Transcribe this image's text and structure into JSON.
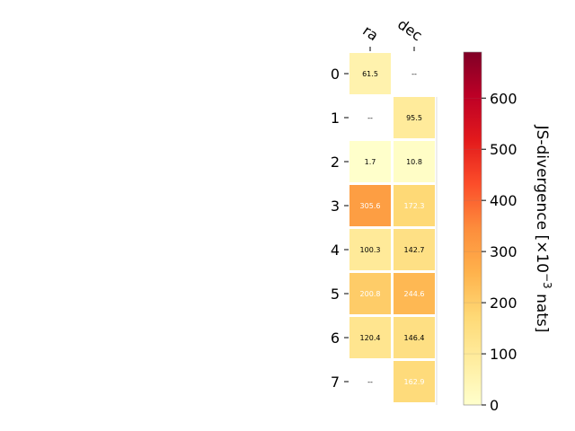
{
  "chart_data": {
    "type": "heatmap",
    "columns": [
      "ra",
      "dec"
    ],
    "rows": [
      "0",
      "1",
      "2",
      "3",
      "4",
      "5",
      "6",
      "7"
    ],
    "values": [
      [
        61.5,
        null
      ],
      [
        null,
        95.5
      ],
      [
        1.7,
        10.8
      ],
      [
        305.6,
        172.3
      ],
      [
        100.3,
        142.7
      ],
      [
        200.8,
        244.6
      ],
      [
        120.4,
        146.4
      ],
      [
        null,
        162.9
      ]
    ],
    "labels": [
      [
        "61.5",
        "--"
      ],
      [
        "--",
        "95.5"
      ],
      [
        "1.7",
        "10.8"
      ],
      [
        "305.6",
        "172.3"
      ],
      [
        "100.3",
        "142.7"
      ],
      [
        "200.8",
        "244.6"
      ],
      [
        "120.4",
        "146.4"
      ],
      [
        "--",
        "162.9"
      ]
    ],
    "colorbar": {
      "label": "JS-divergence [×10",
      "label_exponent": "−3",
      "label_suffix": " nats]",
      "range": [
        0,
        690
      ],
      "ticks": [
        0,
        100,
        200,
        300,
        400,
        500,
        600
      ],
      "tick_labels": [
        "0",
        "100",
        "200",
        "300",
        "400",
        "500",
        "600"
      ],
      "colormap": "YlOrRd"
    }
  }
}
